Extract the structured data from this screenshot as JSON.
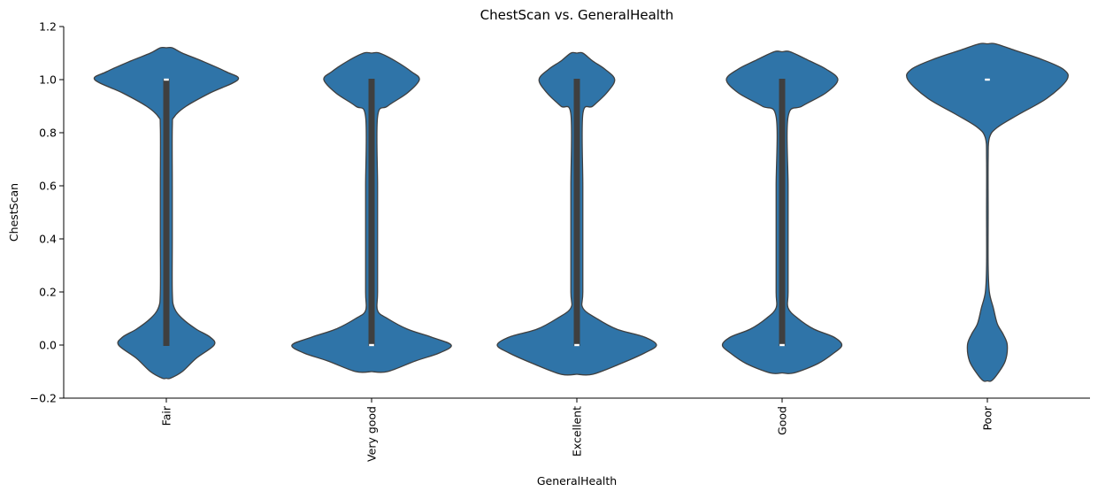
{
  "chart_data": {
    "type": "violin",
    "title": "ChestScan vs. GeneralHealth",
    "xlabel": "GeneralHealth",
    "ylabel": "ChestScan",
    "ylim": [
      -0.2,
      1.2
    ],
    "yticks": [
      "−0.2",
      "0.0",
      "0.2",
      "0.4",
      "0.6",
      "0.8",
      "1.0",
      "1.2"
    ],
    "ytick_values": [
      -0.2,
      0.0,
      0.2,
      0.4,
      0.6,
      0.8,
      1.0,
      1.2
    ],
    "categories": [
      "Fair",
      "Very good",
      "Excellent",
      "Good",
      "Poor"
    ],
    "fill_color": "#2f74a8",
    "edge_color": "#3f3f3f",
    "box_color": "#3f3f3f",
    "violins": [
      {
        "category": "Fair",
        "median": 1.0,
        "q1": 0.0,
        "q3": 1.0,
        "y_min": -0.125,
        "y_max": 1.12,
        "profile": [
          [
            -0.125,
            0.02
          ],
          [
            -0.1,
            0.08
          ],
          [
            -0.05,
            0.15
          ],
          [
            0.0,
            0.24
          ],
          [
            0.03,
            0.22
          ],
          [
            0.06,
            0.15
          ],
          [
            0.1,
            0.08
          ],
          [
            0.14,
            0.04
          ],
          [
            0.2,
            0.03
          ],
          [
            0.4,
            0.03
          ],
          [
            0.6,
            0.03
          ],
          [
            0.82,
            0.03
          ],
          [
            0.86,
            0.04
          ],
          [
            0.9,
            0.1
          ],
          [
            0.95,
            0.22
          ],
          [
            1.0,
            0.36
          ],
          [
            1.03,
            0.3
          ],
          [
            1.07,
            0.18
          ],
          [
            1.1,
            0.08
          ],
          [
            1.12,
            0.03
          ]
        ]
      },
      {
        "category": "Very good",
        "median": 0.0,
        "q1": 0.0,
        "q3": 1.0,
        "y_min": -0.1,
        "y_max": 1.1,
        "profile": [
          [
            -0.1,
            0.08
          ],
          [
            -0.06,
            0.22
          ],
          [
            -0.03,
            0.34
          ],
          [
            0.0,
            0.4
          ],
          [
            0.03,
            0.3
          ],
          [
            0.06,
            0.18
          ],
          [
            0.1,
            0.08
          ],
          [
            0.13,
            0.03
          ],
          [
            0.2,
            0.03
          ],
          [
            0.4,
            0.03
          ],
          [
            0.6,
            0.03
          ],
          [
            0.86,
            0.03
          ],
          [
            0.9,
            0.08
          ],
          [
            0.95,
            0.18
          ],
          [
            1.0,
            0.24
          ],
          [
            1.03,
            0.2
          ],
          [
            1.07,
            0.12
          ],
          [
            1.1,
            0.04
          ]
        ]
      },
      {
        "category": "Excellent",
        "median": 0.0,
        "q1": 0.0,
        "q3": 1.0,
        "y_min": -0.11,
        "y_max": 1.1,
        "profile": [
          [
            -0.11,
            0.08
          ],
          [
            -0.07,
            0.22
          ],
          [
            -0.03,
            0.34
          ],
          [
            0.0,
            0.4
          ],
          [
            0.03,
            0.34
          ],
          [
            0.06,
            0.2
          ],
          [
            0.1,
            0.1
          ],
          [
            0.14,
            0.03
          ],
          [
            0.2,
            0.03
          ],
          [
            0.4,
            0.03
          ],
          [
            0.6,
            0.03
          ],
          [
            0.87,
            0.03
          ],
          [
            0.9,
            0.08
          ],
          [
            0.95,
            0.15
          ],
          [
            1.0,
            0.19
          ],
          [
            1.04,
            0.14
          ],
          [
            1.07,
            0.08
          ],
          [
            1.1,
            0.03
          ]
        ]
      },
      {
        "category": "Good",
        "median": 0.0,
        "q1": 0.0,
        "q3": 1.0,
        "y_min": -0.105,
        "y_max": 1.105,
        "profile": [
          [
            -0.105,
            0.06
          ],
          [
            -0.07,
            0.18
          ],
          [
            -0.03,
            0.26
          ],
          [
            0.0,
            0.3
          ],
          [
            0.03,
            0.26
          ],
          [
            0.06,
            0.16
          ],
          [
            0.1,
            0.08
          ],
          [
            0.14,
            0.03
          ],
          [
            0.2,
            0.03
          ],
          [
            0.4,
            0.03
          ],
          [
            0.6,
            0.03
          ],
          [
            0.86,
            0.03
          ],
          [
            0.9,
            0.1
          ],
          [
            0.95,
            0.22
          ],
          [
            1.0,
            0.28
          ],
          [
            1.04,
            0.22
          ],
          [
            1.07,
            0.14
          ],
          [
            1.105,
            0.04
          ]
        ]
      },
      {
        "category": "Poor",
        "median": 1.0,
        "q1": 1.0,
        "q3": 1.0,
        "y_min": -0.135,
        "y_max": 1.135,
        "profile": [
          [
            -0.135,
            0.02
          ],
          [
            -0.11,
            0.05
          ],
          [
            -0.06,
            0.09
          ],
          [
            0.0,
            0.1
          ],
          [
            0.04,
            0.08
          ],
          [
            0.08,
            0.05
          ],
          [
            0.14,
            0.03
          ],
          [
            0.2,
            0.01
          ],
          [
            0.3,
            0.004
          ],
          [
            0.5,
            0.004
          ],
          [
            0.7,
            0.004
          ],
          [
            0.78,
            0.01
          ],
          [
            0.82,
            0.05
          ],
          [
            0.87,
            0.16
          ],
          [
            0.93,
            0.3
          ],
          [
            1.0,
            0.4
          ],
          [
            1.04,
            0.38
          ],
          [
            1.08,
            0.26
          ],
          [
            1.11,
            0.14
          ],
          [
            1.135,
            0.04
          ]
        ]
      }
    ]
  }
}
